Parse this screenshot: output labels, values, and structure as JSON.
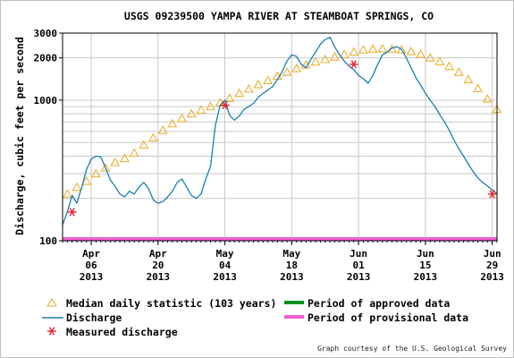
{
  "chart_data": {
    "type": "line",
    "title": "USGS 09239500 YAMPA RIVER AT STEAMBOAT SPRINGS, CO",
    "ylabel": "Discharge, cubic feet per second",
    "y_scale": "log",
    "ylim": [
      100,
      3000
    ],
    "y_ticks": [
      {
        "value": 100,
        "label": "100"
      },
      {
        "value": 1000,
        "label": "1000"
      },
      {
        "value": 2000,
        "label": "2000"
      },
      {
        "value": 3000,
        "label": "3000"
      }
    ],
    "xlim": [
      "2013-03-31",
      "2013-06-30"
    ],
    "x_ticks": [
      {
        "date": "2013-04-06",
        "label": [
          "Apr",
          "06",
          "2013"
        ]
      },
      {
        "date": "2013-04-20",
        "label": [
          "Apr",
          "20",
          "2013"
        ]
      },
      {
        "date": "2013-05-04",
        "label": [
          "May",
          "04",
          "2013"
        ]
      },
      {
        "date": "2013-05-18",
        "label": [
          "May",
          "18",
          "2013"
        ]
      },
      {
        "date": "2013-06-01",
        "label": [
          "Jun",
          "01",
          "2013"
        ]
      },
      {
        "date": "2013-06-15",
        "label": [
          "Jun",
          "15",
          "2013"
        ]
      },
      {
        "date": "2013-06-29",
        "label": [
          "Jun",
          "29",
          "2013"
        ]
      }
    ],
    "grid": true,
    "series": [
      {
        "name": "Median daily statistic (103 years)",
        "marker": "triangle",
        "color": "#e8b030",
        "points": [
          [
            "2013-04-01",
            215
          ],
          [
            "2013-04-03",
            240
          ],
          [
            "2013-04-05",
            265
          ],
          [
            "2013-04-07",
            300
          ],
          [
            "2013-04-09",
            330
          ],
          [
            "2013-04-11",
            360
          ],
          [
            "2013-04-13",
            385
          ],
          [
            "2013-04-15",
            420
          ],
          [
            "2013-04-17",
            480
          ],
          [
            "2013-04-19",
            540
          ],
          [
            "2013-04-21",
            610
          ],
          [
            "2013-04-23",
            680
          ],
          [
            "2013-04-25",
            740
          ],
          [
            "2013-04-27",
            800
          ],
          [
            "2013-04-29",
            850
          ],
          [
            "2013-05-01",
            900
          ],
          [
            "2013-05-03",
            960
          ],
          [
            "2013-05-05",
            1030
          ],
          [
            "2013-05-07",
            1120
          ],
          [
            "2013-05-09",
            1200
          ],
          [
            "2013-05-11",
            1290
          ],
          [
            "2013-05-13",
            1380
          ],
          [
            "2013-05-15",
            1480
          ],
          [
            "2013-05-17",
            1580
          ],
          [
            "2013-05-19",
            1680
          ],
          [
            "2013-05-21",
            1780
          ],
          [
            "2013-05-23",
            1870
          ],
          [
            "2013-05-25",
            1950
          ],
          [
            "2013-05-27",
            2030
          ],
          [
            "2013-05-29",
            2110
          ],
          [
            "2013-05-31",
            2200
          ],
          [
            "2013-06-02",
            2280
          ],
          [
            "2013-06-04",
            2310
          ],
          [
            "2013-06-06",
            2320
          ],
          [
            "2013-06-08",
            2310
          ],
          [
            "2013-06-10",
            2280
          ],
          [
            "2013-06-12",
            2220
          ],
          [
            "2013-06-14",
            2120
          ],
          [
            "2013-06-16",
            2000
          ],
          [
            "2013-06-18",
            1880
          ],
          [
            "2013-06-20",
            1740
          ],
          [
            "2013-06-22",
            1580
          ],
          [
            "2013-06-24",
            1400
          ],
          [
            "2013-06-26",
            1210
          ],
          [
            "2013-06-28",
            1020
          ],
          [
            "2013-06-30",
            860
          ]
        ]
      },
      {
        "name": "Discharge",
        "marker": "line",
        "color": "#1a7fb0",
        "points": [
          [
            "2013-03-31",
            130
          ],
          [
            "2013-04-01",
            160
          ],
          [
            "2013-04-02",
            210
          ],
          [
            "2013-04-03",
            185
          ],
          [
            "2013-04-04",
            240
          ],
          [
            "2013-04-05",
            320
          ],
          [
            "2013-04-06",
            380
          ],
          [
            "2013-04-07",
            400
          ],
          [
            "2013-04-08",
            395
          ],
          [
            "2013-04-09",
            330
          ],
          [
            "2013-04-10",
            270
          ],
          [
            "2013-04-11",
            245
          ],
          [
            "2013-04-12",
            215
          ],
          [
            "2013-04-13",
            205
          ],
          [
            "2013-04-14",
            225
          ],
          [
            "2013-04-15",
            215
          ],
          [
            "2013-04-16",
            240
          ],
          [
            "2013-04-17",
            260
          ],
          [
            "2013-04-18",
            235
          ],
          [
            "2013-04-19",
            195
          ],
          [
            "2013-04-20",
            185
          ],
          [
            "2013-04-21",
            190
          ],
          [
            "2013-04-22",
            205
          ],
          [
            "2013-04-23",
            225
          ],
          [
            "2013-04-24",
            260
          ],
          [
            "2013-04-25",
            275
          ],
          [
            "2013-04-26",
            240
          ],
          [
            "2013-04-27",
            210
          ],
          [
            "2013-04-28",
            200
          ],
          [
            "2013-04-29",
            215
          ],
          [
            "2013-04-30",
            275
          ],
          [
            "2013-05-01",
            340
          ],
          [
            "2013-05-02",
            660
          ],
          [
            "2013-05-03",
            920
          ],
          [
            "2013-05-04",
            1000
          ],
          [
            "2013-05-05",
            780
          ],
          [
            "2013-05-06",
            720
          ],
          [
            "2013-05-07",
            770
          ],
          [
            "2013-05-08",
            860
          ],
          [
            "2013-05-09",
            900
          ],
          [
            "2013-05-10",
            950
          ],
          [
            "2013-05-11",
            1050
          ],
          [
            "2013-05-12",
            1120
          ],
          [
            "2013-05-13",
            1180
          ],
          [
            "2013-05-14",
            1250
          ],
          [
            "2013-05-15",
            1400
          ],
          [
            "2013-05-16",
            1600
          ],
          [
            "2013-05-17",
            1900
          ],
          [
            "2013-05-18",
            2100
          ],
          [
            "2013-05-19",
            2050
          ],
          [
            "2013-05-20",
            1800
          ],
          [
            "2013-05-21",
            1700
          ],
          [
            "2013-05-22",
            1950
          ],
          [
            "2013-05-23",
            2200
          ],
          [
            "2013-05-24",
            2500
          ],
          [
            "2013-05-25",
            2700
          ],
          [
            "2013-05-26",
            2800
          ],
          [
            "2013-05-27",
            2400
          ],
          [
            "2013-05-28",
            2100
          ],
          [
            "2013-05-29",
            1900
          ],
          [
            "2013-05-30",
            1750
          ],
          [
            "2013-05-31",
            1650
          ],
          [
            "2013-06-01",
            1500
          ],
          [
            "2013-06-02",
            1420
          ],
          [
            "2013-06-03",
            1320
          ],
          [
            "2013-06-04",
            1500
          ],
          [
            "2013-06-05",
            1800
          ],
          [
            "2013-06-06",
            2100
          ],
          [
            "2013-06-07",
            2200
          ],
          [
            "2013-06-08",
            2350
          ],
          [
            "2013-06-09",
            2400
          ],
          [
            "2013-06-10",
            2300
          ],
          [
            "2013-06-11",
            2000
          ],
          [
            "2013-06-12",
            1700
          ],
          [
            "2013-06-13",
            1450
          ],
          [
            "2013-06-14",
            1280
          ],
          [
            "2013-06-15",
            1120
          ],
          [
            "2013-06-16",
            1000
          ],
          [
            "2013-06-17",
            900
          ],
          [
            "2013-06-18",
            790
          ],
          [
            "2013-06-19",
            700
          ],
          [
            "2013-06-20",
            610
          ],
          [
            "2013-06-21",
            520
          ],
          [
            "2013-06-22",
            450
          ],
          [
            "2013-06-23",
            400
          ],
          [
            "2013-06-24",
            350
          ],
          [
            "2013-06-25",
            310
          ],
          [
            "2013-06-26",
            280
          ],
          [
            "2013-06-27",
            260
          ],
          [
            "2013-06-28",
            245
          ],
          [
            "2013-06-29",
            230
          ],
          [
            "2013-06-30",
            215
          ]
        ]
      },
      {
        "name": "Measured discharge",
        "marker": "asterisk",
        "color": "#e8202a",
        "points": [
          [
            "2013-04-02",
            160
          ],
          [
            "2013-05-04",
            920
          ],
          [
            "2013-05-31",
            1800
          ],
          [
            "2013-06-29",
            215
          ]
        ]
      }
    ],
    "bars": [
      {
        "name": "Period of approved data",
        "color": "#109020",
        "range": [
          "2013-03-31",
          "2013-03-31"
        ]
      },
      {
        "name": "Period of provisional data",
        "color": "#f060d0",
        "range": [
          "2013-03-31",
          "2013-06-30"
        ]
      }
    ],
    "legend_position": "bottom",
    "legend": [
      {
        "label": "Median daily statistic (103 years)",
        "symbol": "triangle",
        "color": "#e8b030"
      },
      {
        "label": "Discharge",
        "symbol": "line",
        "color": "#1a7fb0"
      },
      {
        "label": "Measured discharge",
        "symbol": "asterisk",
        "color": "#e8202a"
      },
      {
        "label": "Period of approved data",
        "symbol": "bar",
        "color": "#109020"
      },
      {
        "label": "Period of provisional data",
        "symbol": "bar",
        "color": "#f060d0"
      }
    ]
  },
  "credit": "Graph courtesy of the U.S. Geological Survey"
}
